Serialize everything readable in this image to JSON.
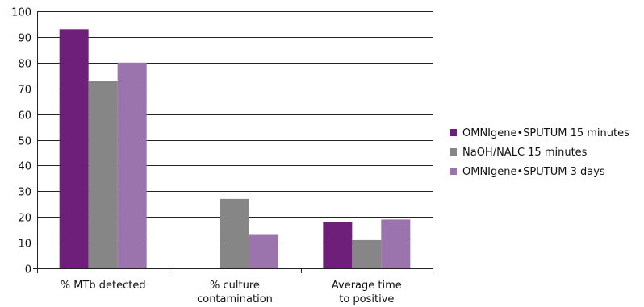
{
  "chart_data": {
    "type": "bar",
    "categories": [
      [
        "% MTb detected"
      ],
      [
        "% culture",
        "contamination"
      ],
      [
        "Average time",
        "to positive"
      ]
    ],
    "series": [
      {
        "name": "OMNIgene•SPUTUM 15 minutes",
        "values": [
          93,
          null,
          18
        ],
        "color": "#6e1f7a"
      },
      {
        "name": "NaOH/NALC 15 minutes",
        "values": [
          73,
          27,
          11
        ],
        "color": "#868686"
      },
      {
        "name": "OMNIgene•SPUTUM 3 days",
        "values": [
          80,
          13,
          19
        ],
        "color": "#9b73ad"
      }
    ],
    "ylim": [
      0,
      100
    ],
    "yticks": [
      0,
      10,
      20,
      30,
      40,
      50,
      60,
      70,
      80,
      90,
      100
    ],
    "grid": true,
    "legend": "right"
  }
}
